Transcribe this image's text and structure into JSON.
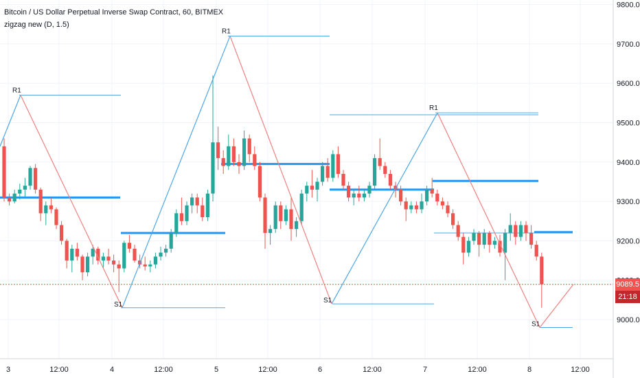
{
  "header": {
    "title": "Bitcoin / US Dollar Perpetual Inverse Swap Contract, 60, BITMEX",
    "indicator": "zigzag new (D, 1.5)"
  },
  "colors": {
    "up": "#26a69a",
    "down": "#ef5350",
    "zigzag_up": "#4da6e8",
    "zigzag_down": "#f08080",
    "pivot": "#2196f3",
    "price_line": "#ef5350",
    "time_badge": "#c4262e",
    "grid": "#f0f3fa"
  },
  "price_badge": {
    "value": "9089.5",
    "timer": "21:18"
  },
  "chart_data": {
    "type": "candlestick",
    "y_axis": {
      "range": [
        8880,
        9840
      ],
      "ticks": [
        "9000.0",
        "9100.0",
        "9200.0",
        "9300.0",
        "9400.0",
        "9500.0",
        "9600.0",
        "9700.0",
        "9800.0"
      ]
    },
    "x_axis": {
      "ticks": [
        "3",
        "12:00",
        "4",
        "12:00",
        "5",
        "12:00",
        "6",
        "12:00",
        "7",
        "12:00",
        "8",
        "12:00"
      ]
    },
    "last_price": 9089.5,
    "candles": [
      [
        9440,
        9460,
        9300,
        9310
      ],
      [
        9310,
        9320,
        9290,
        9300
      ],
      [
        9300,
        9330,
        9295,
        9320
      ],
      [
        9320,
        9345,
        9305,
        9330
      ],
      [
        9330,
        9360,
        9310,
        9340
      ],
      [
        9340,
        9390,
        9330,
        9385
      ],
      [
        9385,
        9395,
        9320,
        9330
      ],
      [
        9330,
        9335,
        9250,
        9270
      ],
      [
        9270,
        9300,
        9240,
        9290
      ],
      [
        9290,
        9310,
        9270,
        9280
      ],
      [
        9280,
        9285,
        9230,
        9240
      ],
      [
        9240,
        9250,
        9190,
        9200
      ],
      [
        9200,
        9205,
        9130,
        9150
      ],
      [
        9150,
        9190,
        9120,
        9180
      ],
      [
        9180,
        9195,
        9150,
        9160
      ],
      [
        9160,
        9165,
        9100,
        9120
      ],
      [
        9120,
        9170,
        9110,
        9160
      ],
      [
        9160,
        9190,
        9140,
        9180
      ],
      [
        9180,
        9185,
        9140,
        9150
      ],
      [
        9150,
        9170,
        9130,
        9160
      ],
      [
        9160,
        9180,
        9140,
        9150
      ],
      [
        9150,
        9165,
        9120,
        9140
      ],
      [
        9140,
        9150,
        9070,
        9130
      ],
      [
        9130,
        9200,
        9120,
        9195
      ],
      [
        9195,
        9215,
        9170,
        9180
      ],
      [
        9180,
        9190,
        9145,
        9150
      ],
      [
        9150,
        9165,
        9130,
        9140
      ],
      [
        9140,
        9160,
        9125,
        9135
      ],
      [
        9135,
        9150,
        9120,
        9140
      ],
      [
        9140,
        9170,
        9130,
        9160
      ],
      [
        9160,
        9185,
        9150,
        9170
      ],
      [
        9170,
        9190,
        9160,
        9180
      ],
      [
        9180,
        9230,
        9170,
        9220
      ],
      [
        9220,
        9280,
        9210,
        9270
      ],
      [
        9270,
        9310,
        9240,
        9250
      ],
      [
        9250,
        9300,
        9240,
        9290
      ],
      [
        9290,
        9320,
        9270,
        9310
      ],
      [
        9310,
        9320,
        9270,
        9290
      ],
      [
        9290,
        9310,
        9250,
        9260
      ],
      [
        9260,
        9330,
        9250,
        9320
      ],
      [
        9320,
        9620,
        9300,
        9450
      ],
      [
        9450,
        9490,
        9380,
        9410
      ],
      [
        9410,
        9430,
        9370,
        9390
      ],
      [
        9390,
        9470,
        9380,
        9440
      ],
      [
        9440,
        9460,
        9390,
        9400
      ],
      [
        9400,
        9420,
        9370,
        9390
      ],
      [
        9390,
        9480,
        9380,
        9460
      ],
      [
        9460,
        9470,
        9400,
        9420
      ],
      [
        9420,
        9440,
        9380,
        9390
      ],
      [
        9390,
        9400,
        9300,
        9310
      ],
      [
        9310,
        9320,
        9180,
        9220
      ],
      [
        9220,
        9240,
        9190,
        9230
      ],
      [
        9230,
        9300,
        9220,
        9290
      ],
      [
        9290,
        9300,
        9230,
        9250
      ],
      [
        9250,
        9290,
        9240,
        9280
      ],
      [
        9280,
        9310,
        9200,
        9230
      ],
      [
        9230,
        9260,
        9210,
        9250
      ],
      [
        9250,
        9330,
        9240,
        9320
      ],
      [
        9320,
        9350,
        9300,
        9340
      ],
      [
        9340,
        9380,
        9310,
        9330
      ],
      [
        9330,
        9360,
        9300,
        9350
      ],
      [
        9350,
        9400,
        9340,
        9390
      ],
      [
        9390,
        9410,
        9350,
        9360
      ],
      [
        9360,
        9430,
        9350,
        9420
      ],
      [
        9420,
        9440,
        9360,
        9370
      ],
      [
        9370,
        9380,
        9330,
        9340
      ],
      [
        9340,
        9350,
        9300,
        9310
      ],
      [
        9310,
        9330,
        9290,
        9320
      ],
      [
        9320,
        9340,
        9300,
        9310
      ],
      [
        9310,
        9330,
        9300,
        9320
      ],
      [
        9320,
        9350,
        9310,
        9340
      ],
      [
        9340,
        9420,
        9330,
        9410
      ],
      [
        9410,
        9460,
        9380,
        9390
      ],
      [
        9390,
        9400,
        9360,
        9370
      ],
      [
        9370,
        9380,
        9330,
        9340
      ],
      [
        9340,
        9350,
        9310,
        9330
      ],
      [
        9330,
        9340,
        9290,
        9300
      ],
      [
        9300,
        9310,
        9250,
        9280
      ],
      [
        9280,
        9300,
        9270,
        9290
      ],
      [
        9290,
        9300,
        9270,
        9280
      ],
      [
        9280,
        9320,
        9270,
        9300
      ],
      [
        9300,
        9340,
        9290,
        9330
      ],
      [
        9330,
        9360,
        9310,
        9320
      ],
      [
        9320,
        9330,
        9290,
        9300
      ],
      [
        9300,
        9310,
        9280,
        9290
      ],
      [
        9290,
        9300,
        9260,
        9270
      ],
      [
        9270,
        9280,
        9230,
        9240
      ],
      [
        9240,
        9250,
        9200,
        9210
      ],
      [
        9210,
        9220,
        9140,
        9170
      ],
      [
        9170,
        9210,
        9160,
        9200
      ],
      [
        9200,
        9230,
        9190,
        9220
      ],
      [
        9220,
        9225,
        9160,
        9190
      ],
      [
        9190,
        9230,
        9180,
        9220
      ],
      [
        9220,
        9225,
        9170,
        9190
      ],
      [
        9190,
        9210,
        9180,
        9200
      ],
      [
        9200,
        9215,
        9160,
        9170
      ],
      [
        9170,
        9230,
        9100,
        9220
      ],
      [
        9220,
        9270,
        9200,
        9240
      ],
      [
        9240,
        9250,
        9190,
        9210
      ],
      [
        9210,
        9250,
        9200,
        9240
      ],
      [
        9240,
        9250,
        9200,
        9220
      ],
      [
        9220,
        9240,
        9180,
        9190
      ],
      [
        9190,
        9200,
        9150,
        9160
      ],
      [
        9160,
        9170,
        9030,
        9089.5
      ]
    ],
    "zigzag": [
      {
        "label": "R1",
        "value": 9570
      },
      {
        "label": "S1",
        "value": 9030
      },
      {
        "label": "R1",
        "value": 9720
      },
      {
        "label": "S1",
        "value": 9040
      },
      {
        "label": "R1",
        "value": 9525
      },
      {
        "label": "S1",
        "value": 8980
      }
    ],
    "levels": [
      {
        "label": "P",
        "value": 9310
      },
      {
        "label": "R1",
        "value": 9570
      },
      {
        "label": "S1",
        "value": 9030
      },
      {
        "label": "P",
        "value": 9220
      },
      {
        "label": "R1",
        "value": 9720
      },
      {
        "label": "P",
        "value": 9395
      },
      {
        "label": "R1",
        "value": 9520
      },
      {
        "label": "S1",
        "value": 9040
      },
      {
        "label": "P",
        "value": 9330
      },
      {
        "label": "R1",
        "value": 9525
      },
      {
        "label": "P",
        "value": 9352
      },
      {
        "label": "S1",
        "value": 9220
      },
      {
        "label": "P",
        "value": 9222
      },
      {
        "label": "S1",
        "value": 8980
      }
    ]
  }
}
